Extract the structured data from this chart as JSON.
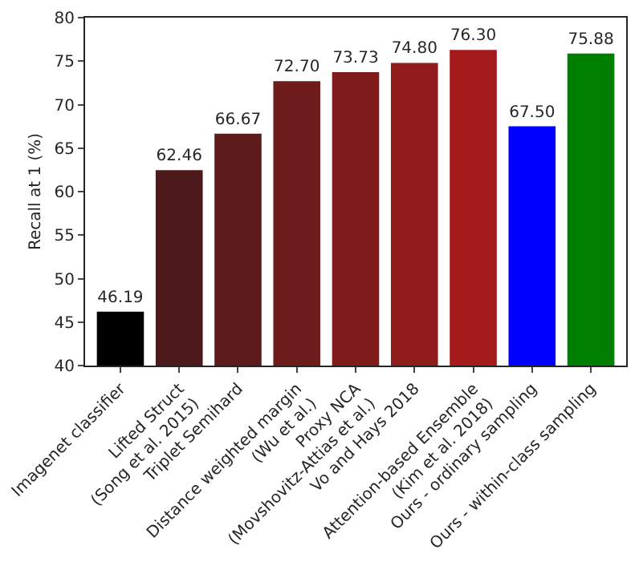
{
  "chart_data": {
    "type": "bar",
    "ylabel": "Recall at 1 (%)",
    "categories": [
      "Imagenet classifier",
      "Lifted Struct\n(Song et al. 2015)",
      "Triplet Semihard",
      "Distance weighted margin\n(Wu et al.)",
      "Proxy NCA\n(Movshovitz-Attias et al.)",
      "Vo and Hays 2018",
      "Attention-based Ensemble\n(Kim et al. 2018)",
      "Ours - ordinary sampling",
      "Ours - within-class sampling"
    ],
    "values": [
      46.19,
      62.46,
      66.67,
      72.7,
      73.73,
      74.8,
      76.3,
      67.5,
      75.88
    ],
    "value_labels": [
      "46.19",
      "62.46",
      "66.67",
      "72.70",
      "73.73",
      "74.80",
      "76.30",
      "67.50",
      "75.88"
    ],
    "colors": [
      "#000000",
      "#4c1a1a",
      "#5e1b1b",
      "#6e1c1c",
      "#801b1b",
      "#911c1c",
      "#a51b1b",
      "#0000ff",
      "#008000"
    ],
    "ylim": [
      40,
      80
    ],
    "yticks": [
      40,
      45,
      50,
      55,
      60,
      65,
      70,
      75,
      80
    ],
    "grid": false
  }
}
